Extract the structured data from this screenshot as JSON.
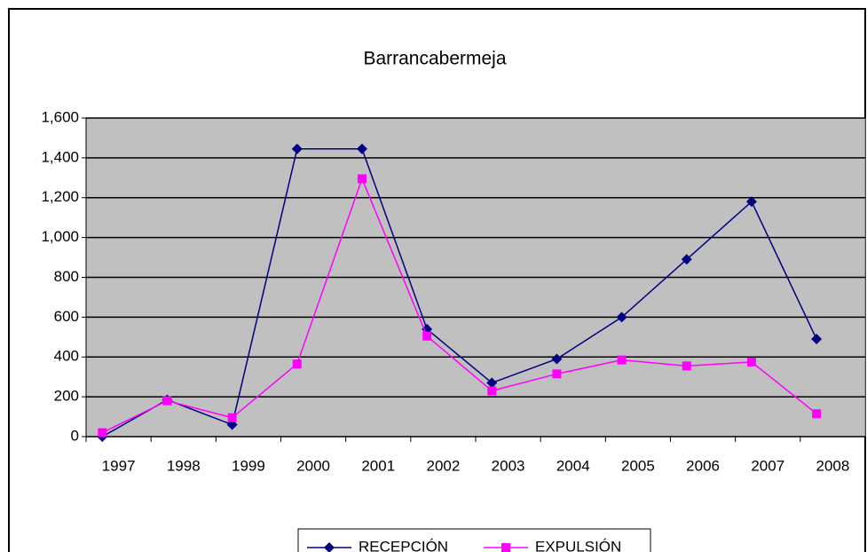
{
  "chart_data": {
    "type": "line",
    "title": "Barrancabermeja",
    "categories": [
      "1997",
      "1998",
      "1999",
      "2000",
      "2001",
      "2002",
      "2003",
      "2004",
      "2005",
      "2006",
      "2007",
      "2008"
    ],
    "series": [
      {
        "name": "RECEPCIÓN",
        "color": "#000080",
        "marker": "diamond",
        "values": [
          0,
          185,
          60,
          1445,
          1445,
          540,
          270,
          390,
          600,
          890,
          1180,
          490
        ]
      },
      {
        "name": "EXPULSIÓN",
        "color": "#ff00ff",
        "marker": "square",
        "values": [
          20,
          180,
          95,
          365,
          1295,
          505,
          230,
          315,
          385,
          355,
          375,
          115
        ]
      }
    ],
    "ylim": [
      0,
      1600
    ],
    "yticks": [
      0,
      200,
      400,
      600,
      800,
      {
        "value": 1000,
        "label": "1,000"
      },
      {
        "value": 1200,
        "label": "1,200"
      },
      {
        "value": 1400,
        "label": "1,400"
      },
      {
        "value": 1600,
        "label": "1,600"
      }
    ],
    "grid": true,
    "legend": "bottom"
  }
}
